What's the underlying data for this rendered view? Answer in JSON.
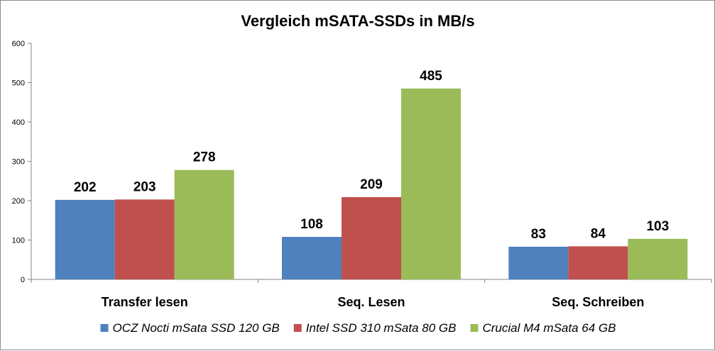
{
  "chart_data": {
    "type": "bar",
    "title": "Vergleich mSATA-SSDs in MB/s",
    "categories": [
      "Transfer lesen",
      "Seq. Lesen",
      "Seq. Schreiben"
    ],
    "series": [
      {
        "name": "OCZ Nocti mSata SSD 120 GB",
        "color": "#4f81bd",
        "values": [
          202,
          108,
          83
        ]
      },
      {
        "name": "Intel SSD 310 mSata 80 GB",
        "color": "#c0504d",
        "values": [
          203,
          209,
          84
        ]
      },
      {
        "name": "Crucial M4 mSata 64 GB",
        "color": "#9bbb59",
        "values": [
          278,
          485,
          103
        ]
      }
    ],
    "ylim": [
      0,
      600
    ],
    "yticks": [
      0,
      100,
      200,
      300,
      400,
      500,
      600
    ],
    "legend": "bottom",
    "grid": false
  }
}
